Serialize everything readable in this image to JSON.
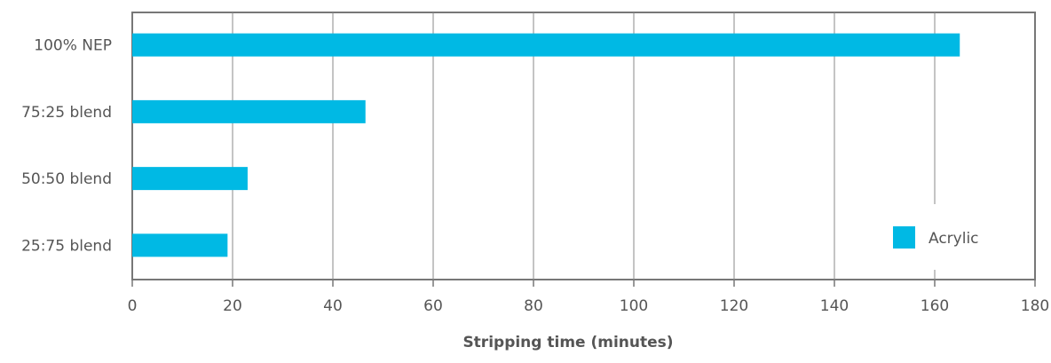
{
  "chart_data": {
    "type": "bar",
    "orientation": "horizontal",
    "categories": [
      "100% NEP",
      "75:25 blend",
      "50:50 blend",
      "25:75 blend"
    ],
    "series": [
      {
        "name": "Acrylic",
        "color": "#00b9e4",
        "values": [
          165,
          46.5,
          23,
          19
        ]
      }
    ],
    "xlabel": "Stripping time (minutes)",
    "ylabel": "",
    "title": "",
    "xlim": [
      0,
      180
    ],
    "xticks": [
      0,
      20,
      40,
      60,
      80,
      100,
      120,
      140,
      160,
      180
    ],
    "grid": "vertical",
    "legend_position": "bottom-right"
  }
}
